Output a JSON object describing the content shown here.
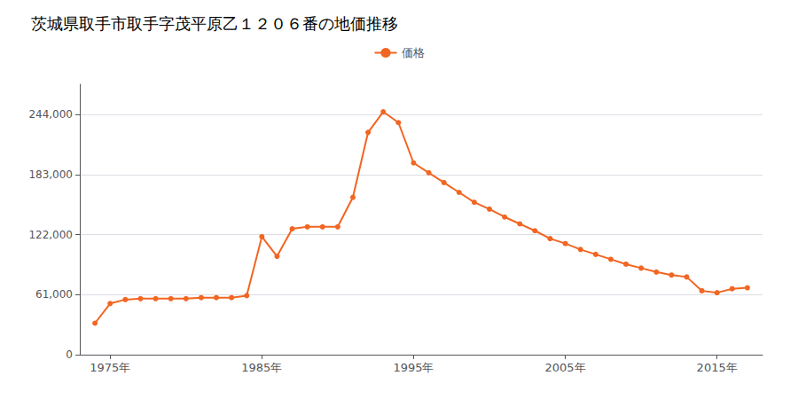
{
  "chart_data": {
    "type": "line",
    "title": "茨城県取手市取手字茂平原乙１２０６番の地価推移",
    "x": [
      1974,
      1975,
      1976,
      1977,
      1978,
      1979,
      1980,
      1981,
      1982,
      1983,
      1984,
      1985,
      1986,
      1987,
      1988,
      1989,
      1990,
      1991,
      1992,
      1993,
      1994,
      1995,
      1996,
      1997,
      1998,
      1999,
      2000,
      2001,
      2002,
      2003,
      2004,
      2005,
      2006,
      2007,
      2008,
      2009,
      2010,
      2011,
      2012,
      2013,
      2014,
      2015,
      2016,
      2017
    ],
    "series": [
      {
        "name": "価格",
        "color": "#f26522",
        "marker": "circle",
        "values": [
          32000,
          52000,
          56000,
          57000,
          57000,
          57000,
          57000,
          58000,
          58000,
          58000,
          60000,
          120000,
          100000,
          128000,
          130000,
          130000,
          130000,
          160000,
          226000,
          247000,
          236000,
          195000,
          185000,
          175000,
          165000,
          155000,
          148000,
          140000,
          133000,
          126000,
          118000,
          113000,
          107000,
          102000,
          97000,
          92000,
          88000,
          84000,
          81000,
          79000,
          65000,
          63000,
          67000,
          68000
        ]
      }
    ],
    "xlim": [
      1973,
      2018
    ],
    "xticks": [
      {
        "value": 1975,
        "label": "1975年"
      },
      {
        "value": 1985,
        "label": "1985年"
      },
      {
        "value": 1995,
        "label": "1995年"
      },
      {
        "value": 2005,
        "label": "2005年"
      },
      {
        "value": 2015,
        "label": "2015年"
      }
    ],
    "ylim": [
      0,
      275000
    ],
    "yticks": [
      0,
      {
        "value": 61000,
        "label": "61,000"
      },
      {
        "value": 122000,
        "label": "122,000"
      },
      {
        "value": 183000,
        "label": "183,000"
      },
      {
        "value": 244000,
        "label": "244,000"
      }
    ],
    "grid": true,
    "legend": "top"
  }
}
